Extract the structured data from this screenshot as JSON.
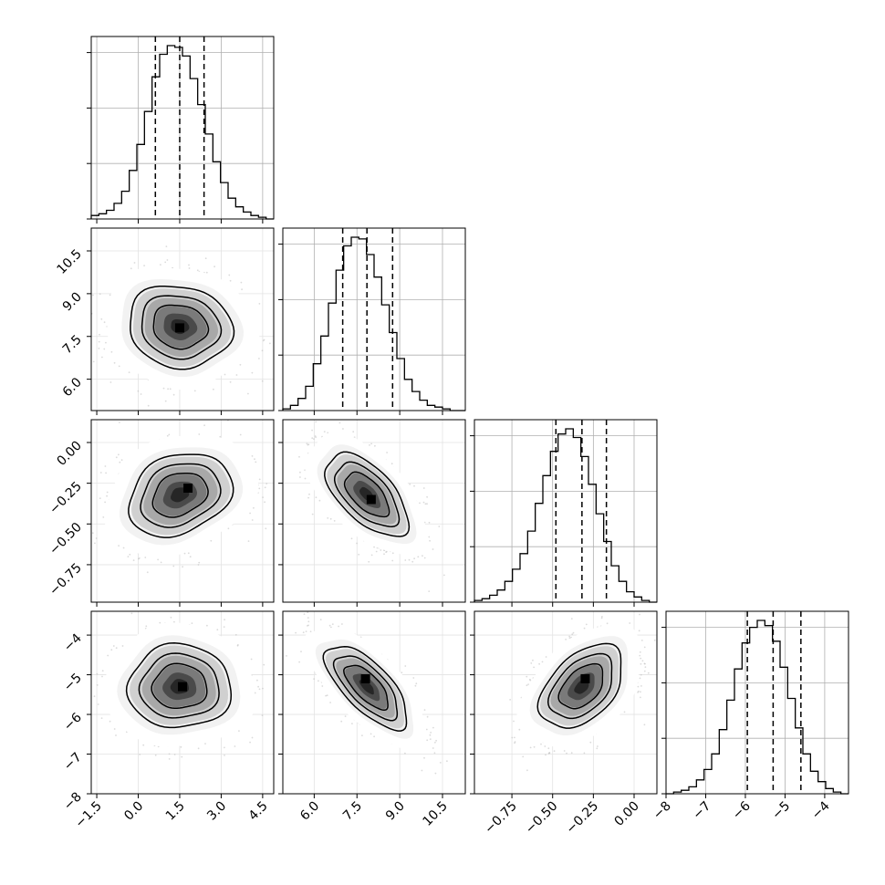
{
  "chart_data": {
    "type": "corner",
    "parameters": [
      {
        "range": [
          -1.7,
          4.9
        ],
        "ticks": [
          -1.5,
          0.0,
          1.5,
          3.0,
          4.5
        ],
        "tick_labels": [
          "−1.5",
          "0.0",
          "1.5",
          "3.0",
          "4.5"
        ],
        "quantiles": [
          0.62,
          1.5,
          2.38
        ],
        "histogram": {
          "bins": 24,
          "counts": [
            0.02,
            0.03,
            0.05,
            0.09,
            0.16,
            0.28,
            0.43,
            0.62,
            0.82,
            0.95,
            1.0,
            0.99,
            0.94,
            0.81,
            0.66,
            0.49,
            0.33,
            0.21,
            0.12,
            0.07,
            0.04,
            0.02,
            0.01,
            0.0
          ]
        }
      },
      {
        "range": [
          4.9,
          11.3
        ],
        "ticks": [
          6.0,
          7.5,
          9.0,
          10.5
        ],
        "tick_labels": [
          "6.0",
          "7.5",
          "9.0",
          "10.5"
        ],
        "quantiles": [
          7.0,
          7.85,
          8.75
        ],
        "histogram": {
          "bins": 24,
          "counts": [
            0.01,
            0.03,
            0.07,
            0.14,
            0.27,
            0.43,
            0.62,
            0.81,
            0.95,
            1.0,
            0.99,
            0.9,
            0.77,
            0.61,
            0.45,
            0.3,
            0.18,
            0.11,
            0.06,
            0.03,
            0.02,
            0.01,
            0.0,
            0.0
          ]
        }
      },
      {
        "range": [
          -0.98,
          0.14
        ],
        "ticks": [
          -0.75,
          -0.5,
          -0.25,
          0.0
        ],
        "tick_labels": [
          "−0.75",
          "−0.50",
          "−0.25",
          "0.00"
        ],
        "quantiles": [
          -0.48,
          -0.32,
          -0.17
        ],
        "histogram": {
          "bins": 24,
          "counts": [
            0.01,
            0.02,
            0.04,
            0.07,
            0.12,
            0.19,
            0.28,
            0.41,
            0.57,
            0.73,
            0.87,
            0.97,
            1.0,
            0.95,
            0.84,
            0.68,
            0.51,
            0.35,
            0.21,
            0.12,
            0.06,
            0.03,
            0.01,
            0.0
          ]
        }
      },
      {
        "range": [
          -8.0,
          -3.4
        ],
        "ticks": [
          -8,
          -7,
          -6,
          -5,
          -4
        ],
        "tick_labels": [
          "−8",
          "−7",
          "−6",
          "−5",
          "−4"
        ],
        "quantiles": [
          -5.95,
          -5.3,
          -4.6
        ],
        "histogram": {
          "bins": 24,
          "counts": [
            0.0,
            0.01,
            0.02,
            0.04,
            0.08,
            0.14,
            0.23,
            0.37,
            0.54,
            0.72,
            0.87,
            0.96,
            1.0,
            0.97,
            0.88,
            0.73,
            0.55,
            0.38,
            0.23,
            0.13,
            0.07,
            0.03,
            0.01,
            0.0
          ]
        }
      }
    ],
    "pairs": [
      {
        "x": 0,
        "y": 1,
        "mean": [
          1.5,
          7.85
        ],
        "sd": [
          1.1,
          0.85
        ],
        "corr": -0.1,
        "peak": [
          1.5,
          7.8
        ]
      },
      {
        "x": 0,
        "y": 2,
        "mean": [
          1.5,
          -0.32
        ],
        "sd": [
          1.1,
          0.15
        ],
        "corr": 0.25,
        "peak": [
          1.8,
          -0.28
        ]
      },
      {
        "x": 1,
        "y": 2,
        "mean": [
          7.85,
          -0.32
        ],
        "sd": [
          0.85,
          0.15
        ],
        "corr": -0.6,
        "peak": [
          8.0,
          -0.35
        ]
      },
      {
        "x": 0,
        "y": 3,
        "mean": [
          1.5,
          -5.3
        ],
        "sd": [
          1.1,
          0.62
        ],
        "corr": 0.0,
        "peak": [
          1.6,
          -5.3
        ]
      },
      {
        "x": 1,
        "y": 3,
        "mean": [
          7.85,
          -5.3
        ],
        "sd": [
          0.85,
          0.62
        ],
        "corr": -0.7,
        "peak": [
          7.8,
          -5.1
        ]
      },
      {
        "x": 2,
        "y": 3,
        "mean": [
          -0.32,
          -5.3
        ],
        "sd": [
          0.15,
          0.62
        ],
        "corr": 0.45,
        "peak": [
          -0.3,
          -5.1
        ]
      }
    ],
    "contour_levels_sigma": [
      1.0,
      1.5,
      2.0,
      2.5
    ],
    "scatter_points_per_panel": 1500,
    "grid": true,
    "colors": {
      "line": "#000000",
      "grid": "#b0b0b0",
      "points": "#bdbdbd",
      "background": "#ffffff"
    }
  }
}
